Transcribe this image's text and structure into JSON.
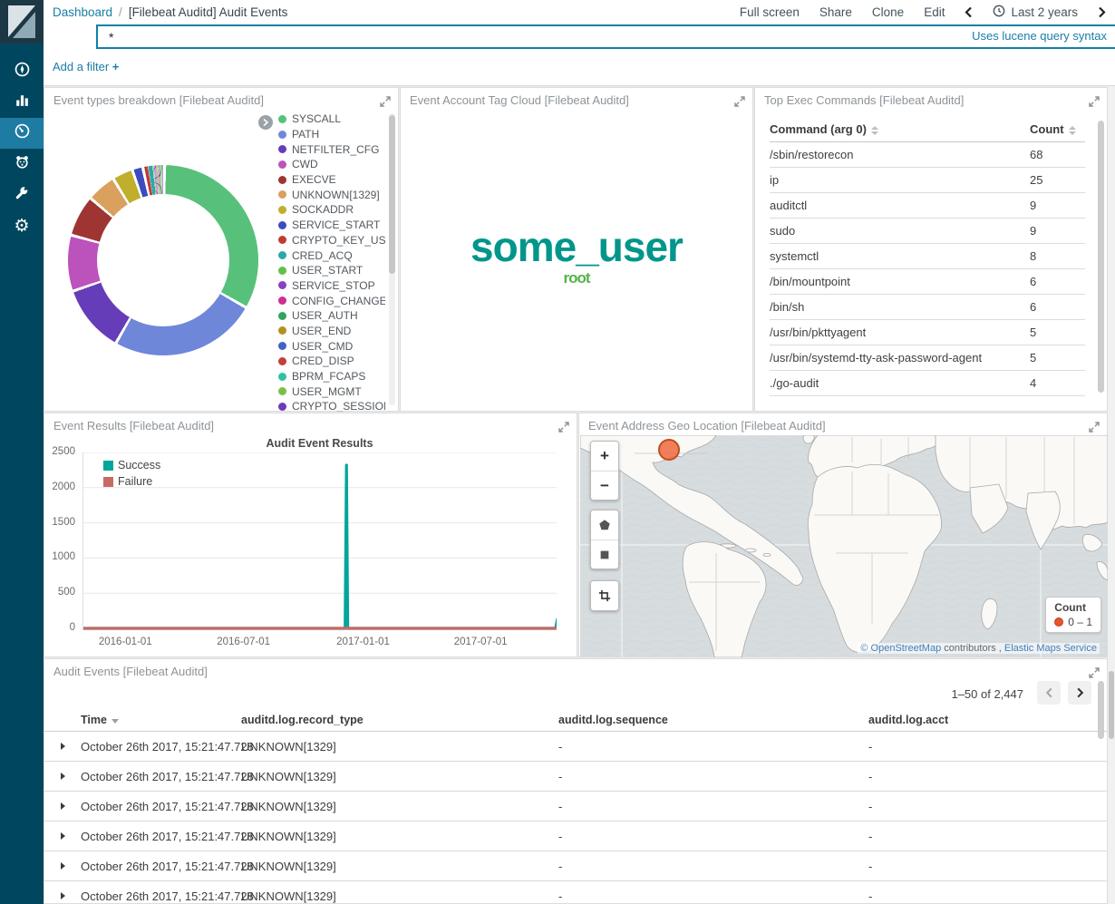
{
  "header": {
    "breadcrumb_root": "Dashboard",
    "breadcrumb_sep": "/",
    "breadcrumb_current": "[Filebeat Auditd] Audit Events",
    "actions": {
      "full_screen": "Full screen",
      "share": "Share",
      "clone": "Clone",
      "edit": "Edit"
    },
    "time_picker": {
      "label": "Last 2 years"
    },
    "search": {
      "value": "*",
      "hint": "Uses lucene query syntax"
    },
    "filter": {
      "add_label": "Add a filter",
      "plus": "+"
    }
  },
  "sidebar": {
    "items": [
      {
        "id": "discover",
        "icon": "compass-icon",
        "active": false
      },
      {
        "id": "visualize",
        "icon": "bar-chart-icon",
        "active": false
      },
      {
        "id": "dashboard",
        "icon": "gauge-icon",
        "active": true
      },
      {
        "id": "timelion",
        "icon": "lion-icon",
        "active": false
      },
      {
        "id": "dev-tools",
        "icon": "wrench-icon",
        "active": false
      },
      {
        "id": "management",
        "icon": "gear-icon",
        "active": false
      }
    ]
  },
  "panels": {
    "event_types": {
      "title": "Event types breakdown [Filebeat Auditd]"
    },
    "tag_cloud": {
      "title": "Event Account Tag Cloud [Filebeat Auditd]",
      "tags": [
        {
          "text": "some_user",
          "color": "#00968b",
          "size": 46
        },
        {
          "text": "root",
          "color": "#54b348",
          "size": 17
        }
      ]
    },
    "top_exec": {
      "title": "Top Exec Commands [Filebeat Auditd]",
      "columns": [
        "Command (arg 0)",
        "Count"
      ],
      "rows": [
        [
          "/sbin/restorecon",
          "68"
        ],
        [
          "ip",
          "25"
        ],
        [
          "auditctl",
          "9"
        ],
        [
          "sudo",
          "9"
        ],
        [
          "systemctl",
          "8"
        ],
        [
          "/bin/mountpoint",
          "6"
        ],
        [
          "/bin/sh",
          "6"
        ],
        [
          "/usr/bin/pkttyagent",
          "5"
        ],
        [
          "/usr/bin/systemd-tty-ask-password-agent",
          "5"
        ],
        [
          "./go-audit",
          "4"
        ]
      ]
    },
    "event_results": {
      "title": "Event Results [Filebeat Auditd]"
    },
    "geo": {
      "title": "Event Address Geo Location [Filebeat Auditd]",
      "zoom_in": "+",
      "zoom_out": "−",
      "legend_title": "Count",
      "legend_range": "0 – 1",
      "marker_color": "#ee6a3f",
      "attribution": {
        "osm_link": "© OpenStreetMap",
        "middle": " contributors , ",
        "ems_link": "Elastic Maps Service"
      }
    },
    "audit_events": {
      "title": "Audit Events [Filebeat Auditd]",
      "pagination": "1–50 of 2,447",
      "columns": [
        "Time",
        "auditd.log.record_type",
        "auditd.log.sequence",
        "auditd.log.acct"
      ],
      "rows": [
        {
          "time": "October 26th 2017, 15:21:47.728",
          "record_type": "UNKNOWN[1329]",
          "sequence": "-",
          "acct": "-"
        },
        {
          "time": "October 26th 2017, 15:21:47.728",
          "record_type": "UNKNOWN[1329]",
          "sequence": "-",
          "acct": "-"
        },
        {
          "time": "October 26th 2017, 15:21:47.728",
          "record_type": "UNKNOWN[1329]",
          "sequence": "-",
          "acct": "-"
        },
        {
          "time": "October 26th 2017, 15:21:47.728",
          "record_type": "UNKNOWN[1329]",
          "sequence": "-",
          "acct": "-"
        },
        {
          "time": "October 26th 2017, 15:21:47.728",
          "record_type": "UNKNOWN[1329]",
          "sequence": "-",
          "acct": "-"
        },
        {
          "time": "October 26th 2017, 15:21:47.728",
          "record_type": "UNKNOWN[1329]",
          "sequence": "-",
          "acct": "-"
        }
      ]
    }
  },
  "chart_data": [
    {
      "type": "pie",
      "title": "Event types breakdown",
      "donut": true,
      "slices": [
        {
          "label": "SYSCALL",
          "percent": 33,
          "color": "#57c17b"
        },
        {
          "label": "PATH",
          "percent": 25,
          "color": "#6f87d8"
        },
        {
          "label": "NETFILTER_CFG",
          "percent": 11.5,
          "color": "#663db8"
        },
        {
          "label": "CWD",
          "percent": 9.5,
          "color": "#bc52bc"
        },
        {
          "label": "EXECVE",
          "percent": 7,
          "color": "#9e3533"
        },
        {
          "label": "UNKNOWN[1329]",
          "percent": 5,
          "color": "#daa05d"
        },
        {
          "label": "SOCKADDR",
          "percent": 3.5,
          "color": "#bfaf2c"
        },
        {
          "label": "SERVICE_START",
          "percent": 1.8,
          "color": "#3b4cc0"
        },
        {
          "label": "CRYPTO_KEY_USER",
          "percent": 1.1,
          "color": "#c23b33"
        },
        {
          "label": "CRED_ACQ",
          "percent": 0.8,
          "color": "#2aa9ad"
        },
        {
          "label": "USER_START",
          "percent": 0.18,
          "color": "#63bf48"
        },
        {
          "label": "SERVICE_STOP",
          "percent": 0.18,
          "color": "#8a41c0"
        },
        {
          "label": "CONFIG_CHANGE",
          "percent": 0.18,
          "color": "#cc2f90"
        },
        {
          "label": "USER_AUTH",
          "percent": 0.18,
          "color": "#2fa65c"
        },
        {
          "label": "USER_END",
          "percent": 0.18,
          "color": "#b6911f"
        },
        {
          "label": "USER_CMD",
          "percent": 0.18,
          "color": "#4161c5"
        },
        {
          "label": "CRED_DISP",
          "percent": 0.18,
          "color": "#c0403a"
        },
        {
          "label": "BPRM_FCAPS",
          "percent": 0.18,
          "color": "#2fc1a3"
        },
        {
          "label": "USER_MGMT",
          "percent": 0.18,
          "color": "#7cc043"
        },
        {
          "label": "CRYPTO_SESSION",
          "percent": 0.18,
          "color": "#6c3cb8"
        }
      ]
    },
    {
      "type": "line",
      "title": "Audit Event Results",
      "x_range": [
        "2015-10-27",
        "2017-10-26"
      ],
      "x_ticks": [
        "2016-01-01",
        "2016-07-01",
        "2017-01-01",
        "2017-07-01"
      ],
      "ylim": [
        0,
        2500
      ],
      "y_ticks": [
        0,
        500,
        1000,
        1500,
        2000,
        2500
      ],
      "legend_position": "top-left",
      "series": [
        {
          "name": "Success",
          "color": "#00a69b",
          "points": [
            [
              "2015-10-27",
              0
            ],
            [
              "2016-12-03",
              0
            ],
            [
              "2016-12-05",
              2320
            ],
            [
              "2016-12-07",
              0
            ],
            [
              "2017-10-23",
              0
            ],
            [
              "2017-10-26",
              140
            ]
          ]
        },
        {
          "name": "Failure",
          "color": "#c66a66",
          "points": [
            [
              "2015-10-27",
              0
            ],
            [
              "2017-10-26",
              0
            ]
          ]
        }
      ]
    }
  ]
}
